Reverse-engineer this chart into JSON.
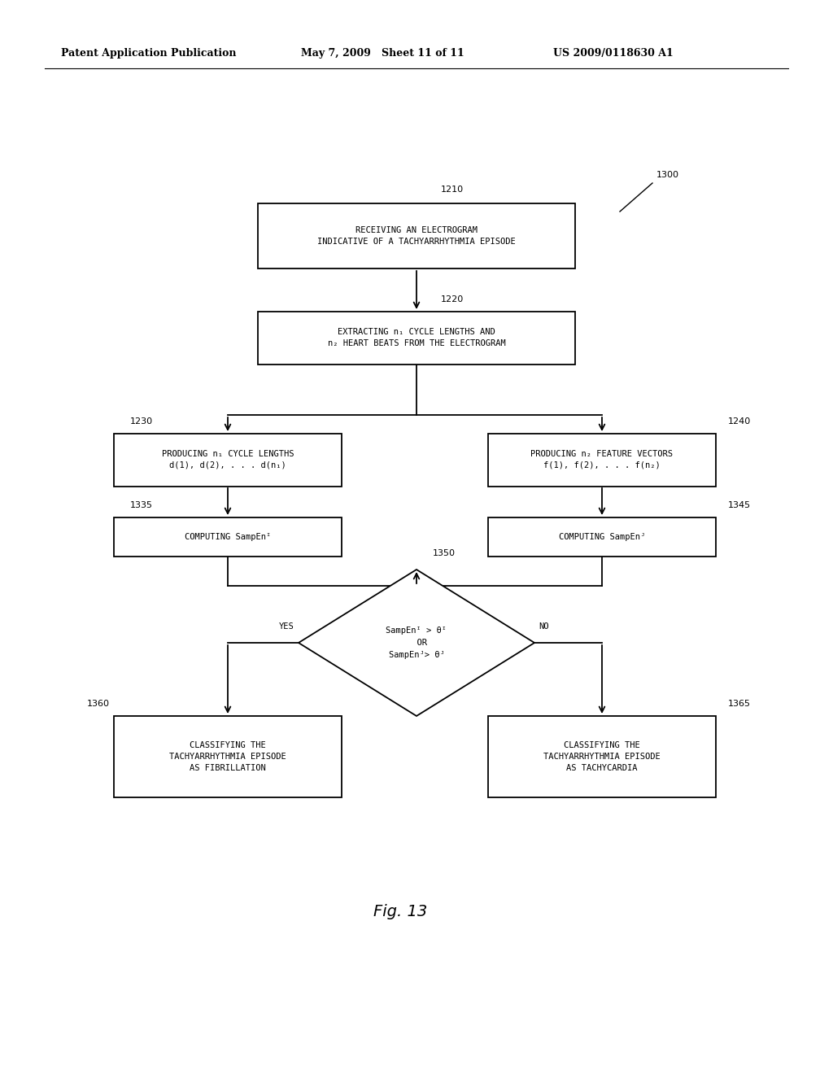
{
  "bg_color": "#ffffff",
  "header_left": "Patent Application Publication",
  "header_mid": "May 7, 2009   Sheet 11 of 11",
  "header_right": "US 2009/0118630 A1",
  "fig_label": "Fig. 13",
  "node_1210_label": "RECEIVING AN ELECTROGRAM\nINDICATIVE OF A TACHYARRHYTHMIA EPISODE",
  "node_1220_label": "EXTRACTING n₁ CYCLE LENGTHS AND\nn₂ HEART BEATS FROM THE ELECTROGRAM",
  "node_1230_label": "PRODUCING n₁ CYCLE LENGTHS\nd(1), d(2), . . . d(n₁)",
  "node_1240_label": "PRODUCING n₂ FEATURE VECTORS\nf(1), f(2), . . . f(n₂)",
  "node_1335_label": "COMPUTING SampEnᴵ",
  "node_1345_label": "COMPUTING SampEnᴶ",
  "node_1350_label": "SampEnᴵ > θᴵ\n  OR\nSampEnᴶ> θᴶ",
  "node_1360_label": "CLASSIFYING THE\nTACHYARRHYTHMIA EPISODE\nAS FIBRILLATION",
  "node_1365_label": "CLASSIFYING THE\nTACHYARRHYTHMIA EPISODE\nAS TACHYCARDIA",
  "label_1210": "1210",
  "label_1220": "1220",
  "label_1230": "1230",
  "label_1240": "1240",
  "label_1300": "1300",
  "label_1335": "1335",
  "label_1345": "1345",
  "label_1350": "1350",
  "label_1360": "1360",
  "label_1365": "1365",
  "yes_label": "YES",
  "no_label": "NO",
  "line_color": "#000000",
  "text_color": "#000000",
  "box_facecolor": "#ffffff",
  "box_edgecolor": "#000000"
}
